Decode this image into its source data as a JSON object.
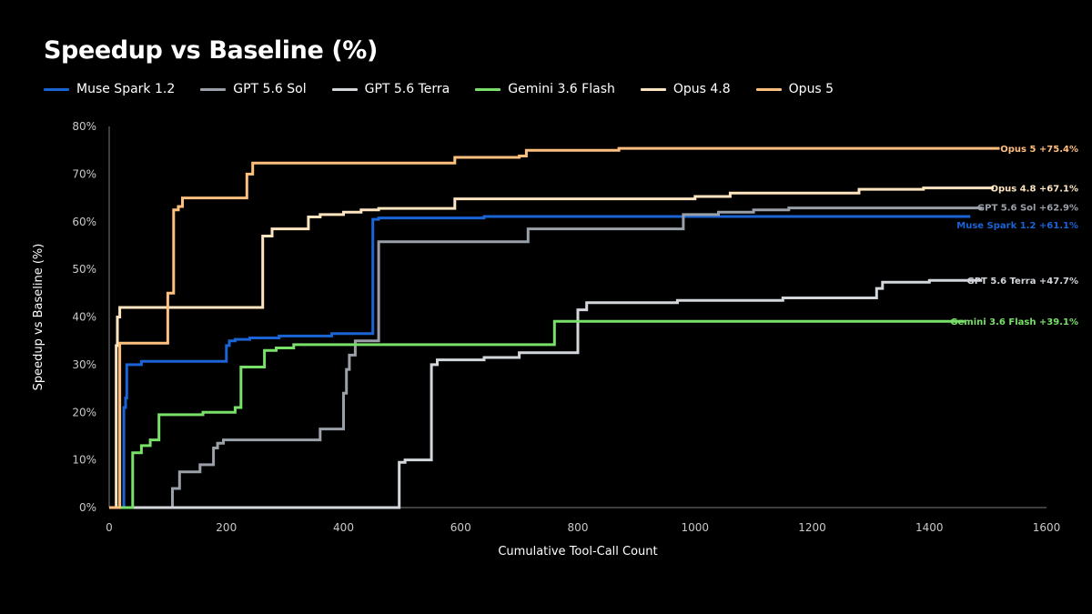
{
  "chart_data": {
    "type": "line",
    "title": "Speedup vs Baseline (%)",
    "xlabel": "Cumulative Tool-Call Count",
    "ylabel": "Speedup vs Baseline (%)",
    "xlim": [
      0,
      1600
    ],
    "ylim": [
      0,
      80
    ],
    "x_ticks": [
      0,
      200,
      400,
      600,
      800,
      1000,
      1200,
      1400,
      1600
    ],
    "y_ticks": [
      0,
      10,
      20,
      30,
      40,
      50,
      60,
      70,
      80
    ],
    "y_tick_labels": [
      "0%",
      "10%",
      "20%",
      "30%",
      "40%",
      "50%",
      "60%",
      "70%",
      "80%"
    ],
    "legend_position": "top-left",
    "grid": false,
    "series": [
      {
        "name": "Muse Spark 1.2",
        "color": "#1a64d6",
        "end_label": "Muse Spark 1.2 +61.1%",
        "points": [
          [
            0,
            0
          ],
          [
            25,
            0
          ],
          [
            25,
            21
          ],
          [
            28,
            21
          ],
          [
            28,
            23
          ],
          [
            30,
            23
          ],
          [
            30,
            30
          ],
          [
            55,
            30
          ],
          [
            55,
            30.7
          ],
          [
            200,
            30.7
          ],
          [
            200,
            34
          ],
          [
            205,
            34
          ],
          [
            205,
            35
          ],
          [
            215,
            35
          ],
          [
            215,
            35.3
          ],
          [
            240,
            35.3
          ],
          [
            240,
            35.6
          ],
          [
            290,
            35.6
          ],
          [
            290,
            36
          ],
          [
            380,
            36
          ],
          [
            380,
            36.5
          ],
          [
            450,
            36.5
          ],
          [
            450,
            60.5
          ],
          [
            460,
            60.5
          ],
          [
            460,
            60.8
          ],
          [
            640,
            60.8
          ],
          [
            640,
            61.1
          ],
          [
            1470,
            61.1
          ]
        ]
      },
      {
        "name": "GPT 5.6 Sol",
        "color": "#9aa0a8",
        "end_label": "GPT 5.6 Sol +62.9%",
        "points": [
          [
            0,
            0
          ],
          [
            108,
            0
          ],
          [
            108,
            4
          ],
          [
            120,
            4
          ],
          [
            120,
            7.5
          ],
          [
            155,
            7.5
          ],
          [
            155,
            9
          ],
          [
            178,
            9
          ],
          [
            178,
            12.5
          ],
          [
            185,
            12.5
          ],
          [
            185,
            13.5
          ],
          [
            195,
            13.5
          ],
          [
            195,
            14.2
          ],
          [
            360,
            14.2
          ],
          [
            360,
            16.5
          ],
          [
            400,
            16.5
          ],
          [
            400,
            24
          ],
          [
            405,
            24
          ],
          [
            405,
            29
          ],
          [
            410,
            29
          ],
          [
            410,
            32
          ],
          [
            420,
            32
          ],
          [
            420,
            35
          ],
          [
            460,
            35
          ],
          [
            460,
            55.8
          ],
          [
            715,
            55.8
          ],
          [
            715,
            58.5
          ],
          [
            980,
            58.5
          ],
          [
            980,
            61.5
          ],
          [
            1040,
            61.5
          ],
          [
            1040,
            62
          ],
          [
            1100,
            62
          ],
          [
            1100,
            62.5
          ],
          [
            1160,
            62.5
          ],
          [
            1160,
            62.9
          ],
          [
            1490,
            62.9
          ]
        ]
      },
      {
        "name": "GPT 5.6 Terra",
        "color": "#d3d7dc",
        "end_label": "GPT 5.6 Terra +47.7%",
        "points": [
          [
            0,
            0
          ],
          [
            495,
            0
          ],
          [
            495,
            9.5
          ],
          [
            505,
            9.5
          ],
          [
            505,
            10
          ],
          [
            550,
            10
          ],
          [
            550,
            30
          ],
          [
            560,
            30
          ],
          [
            560,
            31
          ],
          [
            640,
            31
          ],
          [
            640,
            31.5
          ],
          [
            700,
            31.5
          ],
          [
            700,
            32.5
          ],
          [
            800,
            32.5
          ],
          [
            800,
            41.5
          ],
          [
            815,
            41.5
          ],
          [
            815,
            43
          ],
          [
            970,
            43
          ],
          [
            970,
            43.5
          ],
          [
            1150,
            43.5
          ],
          [
            1150,
            44
          ],
          [
            1310,
            44
          ],
          [
            1310,
            46
          ],
          [
            1320,
            46
          ],
          [
            1320,
            47.3
          ],
          [
            1400,
            47.3
          ],
          [
            1400,
            47.7
          ],
          [
            1490,
            47.7
          ]
        ]
      },
      {
        "name": "Gemini 3.6 Flash",
        "color": "#79e06a",
        "end_label": "Gemini 3.6 Flash +39.1%",
        "points": [
          [
            0,
            0
          ],
          [
            40,
            0
          ],
          [
            40,
            11.5
          ],
          [
            55,
            11.5
          ],
          [
            55,
            13
          ],
          [
            70,
            13
          ],
          [
            70,
            14.2
          ],
          [
            85,
            14.2
          ],
          [
            85,
            19.5
          ],
          [
            160,
            19.5
          ],
          [
            160,
            20
          ],
          [
            215,
            20
          ],
          [
            215,
            21
          ],
          [
            225,
            21
          ],
          [
            225,
            29.5
          ],
          [
            265,
            29.5
          ],
          [
            265,
            33
          ],
          [
            285,
            33
          ],
          [
            285,
            33.5
          ],
          [
            315,
            33.5
          ],
          [
            315,
            34.2
          ],
          [
            760,
            34.2
          ],
          [
            760,
            39.1
          ],
          [
            1460,
            39.1
          ]
        ]
      },
      {
        "name": "Opus 4.8",
        "color": "#ffe4c0",
        "end_label": "Opus 4.8 +67.1%",
        "points": [
          [
            0,
            0
          ],
          [
            12,
            0
          ],
          [
            12,
            34
          ],
          [
            14,
            34
          ],
          [
            14,
            40
          ],
          [
            18,
            40
          ],
          [
            18,
            42
          ],
          [
            262,
            42
          ],
          [
            262,
            57
          ],
          [
            278,
            57
          ],
          [
            278,
            58.5
          ],
          [
            340,
            58.5
          ],
          [
            340,
            61
          ],
          [
            360,
            61
          ],
          [
            360,
            61.5
          ],
          [
            400,
            61.5
          ],
          [
            400,
            62
          ],
          [
            430,
            62
          ],
          [
            430,
            62.5
          ],
          [
            460,
            62.5
          ],
          [
            460,
            62.8
          ],
          [
            590,
            62.8
          ],
          [
            590,
            64.8
          ],
          [
            1000,
            64.8
          ],
          [
            1000,
            65.3
          ],
          [
            1060,
            65.3
          ],
          [
            1060,
            66
          ],
          [
            1280,
            66
          ],
          [
            1280,
            66.8
          ],
          [
            1390,
            66.8
          ],
          [
            1390,
            67.1
          ],
          [
            1510,
            67.1
          ]
        ]
      },
      {
        "name": "Opus 5",
        "color": "#ffbf7f",
        "end_label": "Opus 5 +75.4%",
        "points": [
          [
            0,
            0
          ],
          [
            18,
            0
          ],
          [
            18,
            34.5
          ],
          [
            100,
            34.5
          ],
          [
            100,
            45
          ],
          [
            110,
            45
          ],
          [
            110,
            62.5
          ],
          [
            118,
            62.5
          ],
          [
            118,
            63.2
          ],
          [
            125,
            63.2
          ],
          [
            125,
            65
          ],
          [
            235,
            65
          ],
          [
            235,
            70
          ],
          [
            245,
            70
          ],
          [
            245,
            72.3
          ],
          [
            590,
            72.3
          ],
          [
            590,
            73.5
          ],
          [
            700,
            73.5
          ],
          [
            700,
            73.8
          ],
          [
            712,
            73.8
          ],
          [
            712,
            75
          ],
          [
            870,
            75
          ],
          [
            870,
            75.4
          ],
          [
            1520,
            75.4
          ]
        ]
      }
    ]
  }
}
